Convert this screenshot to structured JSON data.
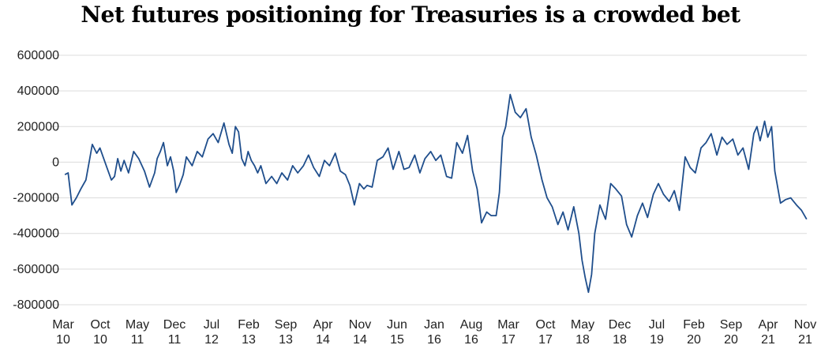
{
  "chart_data": {
    "type": "line",
    "title": "Net futures positioning for Treasuries is a crowded bet",
    "xlabel": "",
    "ylabel": "",
    "ylim": [
      -800000,
      600000
    ],
    "y_ticks": [
      600000,
      400000,
      200000,
      0,
      -200000,
      -400000,
      -600000,
      -800000
    ],
    "y_tick_labels": [
      "600000",
      "400000",
      "200000",
      "0",
      "-200000",
      "-400000",
      "-600000",
      "-800000"
    ],
    "x_tick_labels": [
      [
        "Mar",
        "10"
      ],
      [
        "Oct",
        "10"
      ],
      [
        "May",
        "11"
      ],
      [
        "Dec",
        "11"
      ],
      [
        "Jul",
        "12"
      ],
      [
        "Feb",
        "13"
      ],
      [
        "Sep",
        "13"
      ],
      [
        "Apr",
        "14"
      ],
      [
        "Nov",
        "14"
      ],
      [
        "Jun",
        "15"
      ],
      [
        "Jan",
        "16"
      ],
      [
        "Aug",
        "16"
      ],
      [
        "Mar",
        "17"
      ],
      [
        "Oct",
        "17"
      ],
      [
        "May",
        "18"
      ],
      [
        "Dec",
        "18"
      ],
      [
        "Jul",
        "19"
      ],
      [
        "Feb",
        "20"
      ],
      [
        "Sep",
        "20"
      ],
      [
        "Apr",
        "21"
      ],
      [
        "Nov",
        "21"
      ]
    ],
    "xlim": [
      2010.167,
      2021.833
    ],
    "grid": true,
    "legend": "none",
    "series_color": "#1f4e8c",
    "series": [
      {
        "x": [
          2010.17,
          2010.22,
          2010.28,
          2010.35,
          2010.42,
          2010.5,
          2010.55,
          2010.6,
          2010.67,
          2010.72,
          2010.78,
          2010.83,
          2010.9,
          2010.95,
          2011.0,
          2011.05,
          2011.1,
          2011.17,
          2011.25,
          2011.33,
          2011.42,
          2011.5,
          2011.58,
          2011.62,
          2011.67,
          2011.72,
          2011.78,
          2011.83,
          2011.88,
          2011.92,
          2011.97,
          2012.03,
          2012.08,
          2012.17,
          2012.25,
          2012.33,
          2012.42,
          2012.5,
          2012.58,
          2012.67,
          2012.75,
          2012.8,
          2012.85,
          2012.9,
          2012.95,
          2013.0,
          2013.05,
          2013.1,
          2013.15,
          2013.2,
          2013.25,
          2013.33,
          2013.42,
          2013.5,
          2013.58,
          2013.67,
          2013.75,
          2013.83,
          2013.92,
          2014.0,
          2014.08,
          2014.17,
          2014.25,
          2014.33,
          2014.42,
          2014.5,
          2014.58,
          2014.65,
          2014.72,
          2014.8,
          2014.87,
          2014.92,
          2015.0,
          2015.08,
          2015.17,
          2015.25,
          2015.33,
          2015.42,
          2015.5,
          2015.58,
          2015.67,
          2015.75,
          2015.83,
          2015.92,
          2016.0,
          2016.08,
          2016.17,
          2016.25,
          2016.33,
          2016.42,
          2016.5,
          2016.58,
          2016.65,
          2016.72,
          2016.8,
          2016.87,
          2016.95,
          2017.0,
          2017.05,
          2017.1,
          2017.17,
          2017.25,
          2017.33,
          2017.42,
          2017.5,
          2017.58,
          2017.67,
          2017.75,
          2017.83,
          2017.92,
          2018.0,
          2018.08,
          2018.17,
          2018.25,
          2018.3,
          2018.35,
          2018.4,
          2018.45,
          2018.5,
          2018.58,
          2018.67,
          2018.75,
          2018.83,
          2018.92,
          2019.0,
          2019.08,
          2019.17,
          2019.25,
          2019.33,
          2019.42,
          2019.5,
          2019.58,
          2019.67,
          2019.75,
          2019.83,
          2019.92,
          2020.0,
          2020.08,
          2020.17,
          2020.25,
          2020.33,
          2020.42,
          2020.5,
          2020.58,
          2020.67,
          2020.75,
          2020.83,
          2020.92,
          2021.0,
          2021.05,
          2021.1,
          2021.17,
          2021.22,
          2021.28,
          2021.33,
          2021.42,
          2021.5,
          2021.58,
          2021.67,
          2021.75,
          2021.83
        ],
        "y": [
          -70000,
          -60000,
          -240000,
          -200000,
          -150000,
          -100000,
          0,
          100000,
          50000,
          80000,
          20000,
          -30000,
          -100000,
          -80000,
          20000,
          -50000,
          10000,
          -60000,
          60000,
          20000,
          -50000,
          -140000,
          -60000,
          20000,
          60000,
          110000,
          -20000,
          30000,
          -50000,
          -170000,
          -130000,
          -70000,
          30000,
          -20000,
          60000,
          30000,
          130000,
          160000,
          110000,
          220000,
          100000,
          50000,
          200000,
          170000,
          20000,
          -20000,
          60000,
          10000,
          -20000,
          -60000,
          -20000,
          -120000,
          -80000,
          -120000,
          -60000,
          -100000,
          -20000,
          -60000,
          -20000,
          40000,
          -30000,
          -80000,
          10000,
          -20000,
          50000,
          -50000,
          -70000,
          -130000,
          -240000,
          -120000,
          -150000,
          -130000,
          -140000,
          10000,
          30000,
          80000,
          -40000,
          60000,
          -40000,
          -30000,
          40000,
          -60000,
          20000,
          60000,
          10000,
          40000,
          -80000,
          -90000,
          110000,
          50000,
          150000,
          -50000,
          -150000,
          -340000,
          -280000,
          -300000,
          -300000,
          -170000,
          140000,
          200000,
          380000,
          280000,
          250000,
          300000,
          140000,
          40000,
          -100000,
          -200000,
          -250000,
          -350000,
          -280000,
          -380000,
          -250000,
          -400000,
          -550000,
          -650000,
          -730000,
          -630000,
          -400000,
          -240000,
          -320000,
          -120000,
          -150000,
          -190000,
          -350000,
          -420000,
          -300000,
          -230000,
          -310000,
          -180000,
          -120000,
          -180000,
          -220000,
          -160000,
          -270000,
          30000,
          -30000,
          -60000,
          80000,
          110000,
          160000,
          40000,
          140000,
          100000,
          130000,
          40000,
          80000,
          -40000,
          160000,
          200000,
          120000,
          230000,
          140000,
          200000,
          -50000,
          -230000,
          -210000,
          -200000,
          -240000,
          -270000,
          -320000
        ]
      }
    ]
  }
}
